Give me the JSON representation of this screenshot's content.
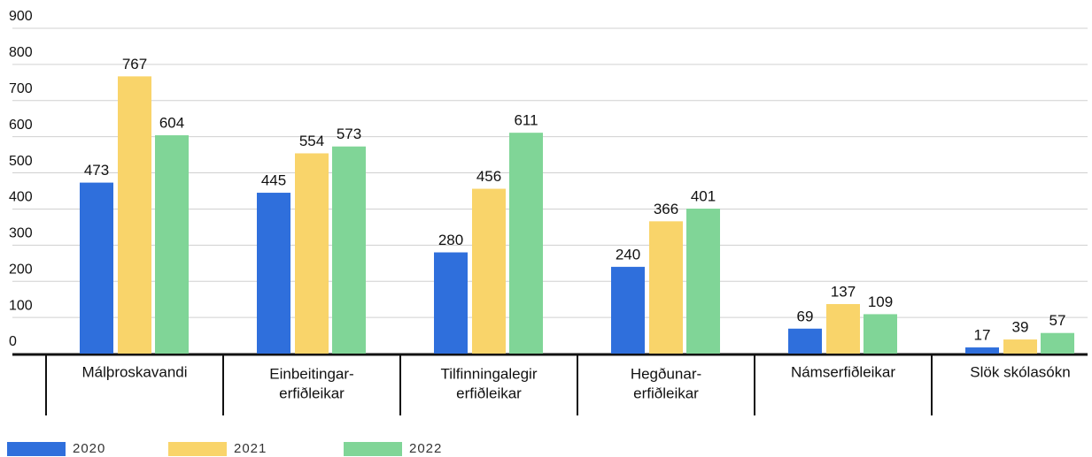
{
  "chart_data": {
    "type": "bar",
    "categories": [
      [
        "Málþroskavandi"
      ],
      [
        "Einbeitingar-",
        "erfiðleikar"
      ],
      [
        "Tilfinningalegir",
        "erfiðleikar"
      ],
      [
        "Hegðunar-",
        "erfiðleikar"
      ],
      [
        "Námserfiðleikar"
      ],
      [
        "Slök skólasókn"
      ]
    ],
    "series": [
      {
        "name": "2020",
        "color": "#2f6fdc",
        "values": [
          473,
          445,
          280,
          240,
          69,
          17
        ]
      },
      {
        "name": "2021",
        "color": "#f9d46a",
        "values": [
          767,
          554,
          456,
          366,
          137,
          39
        ]
      },
      {
        "name": "2022",
        "color": "#80d597",
        "values": [
          604,
          573,
          611,
          401,
          109,
          57
        ]
      }
    ],
    "ylim": [
      0,
      900
    ],
    "yticks": [
      0,
      100,
      200,
      300,
      400,
      500,
      600,
      700,
      800,
      900
    ],
    "grid": true,
    "legend": "bottom"
  }
}
